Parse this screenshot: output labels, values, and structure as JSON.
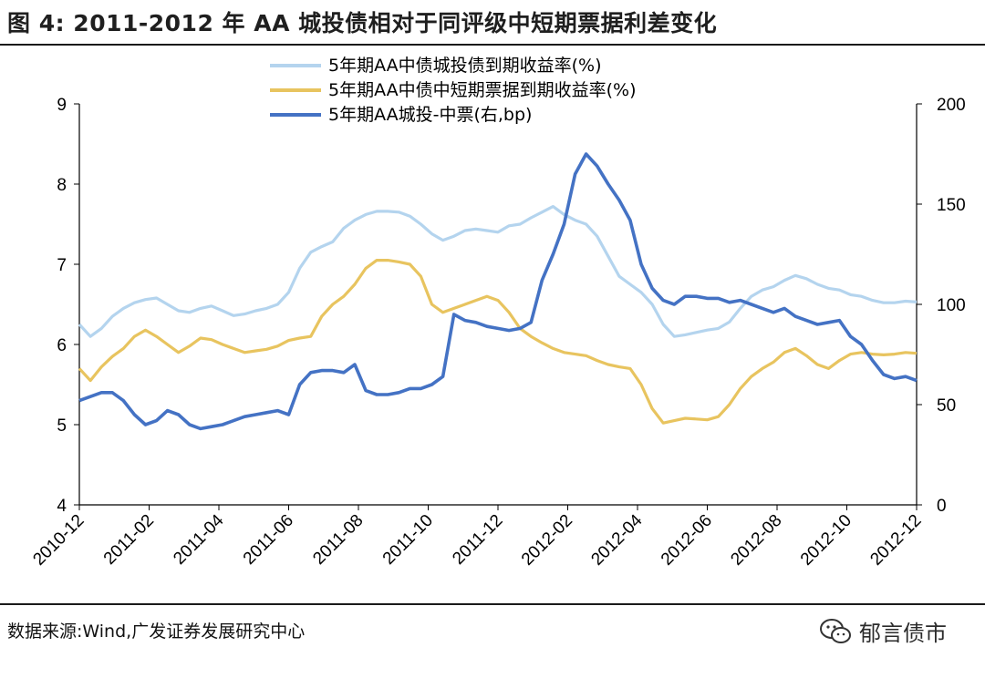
{
  "title": "图 4:  2011-2012 年 AA 城投债相对于同评级中短期票据利差变化",
  "source": "数据来源:Wind,广发证券发展研究中心",
  "watermark": "郁言债市",
  "chart_data": {
    "type": "line",
    "x_ticks": [
      "2010-12",
      "2011-02",
      "2011-04",
      "2011-06",
      "2011-08",
      "2011-10",
      "2011-12",
      "2012-02",
      "2012-04",
      "2012-06",
      "2012-08",
      "2012-10",
      "2012-12"
    ],
    "y_left": {
      "range": [
        4,
        9
      ],
      "ticks": [
        4,
        5,
        6,
        7,
        8,
        9
      ]
    },
    "y_right": {
      "range": [
        0,
        200
      ],
      "ticks": [
        0,
        50,
        100,
        150,
        200
      ]
    },
    "legend_position": "top-center",
    "series": [
      {
        "name": "5年期AA中债城投债到期收益率(%)",
        "axis": "left",
        "color": "#b4d4ee",
        "values": [
          6.25,
          6.1,
          6.2,
          6.35,
          6.45,
          6.52,
          6.56,
          6.58,
          6.5,
          6.42,
          6.4,
          6.45,
          6.48,
          6.42,
          6.36,
          6.38,
          6.42,
          6.45,
          6.5,
          6.65,
          6.95,
          7.15,
          7.22,
          7.28,
          7.45,
          7.55,
          7.62,
          7.66,
          7.66,
          7.65,
          7.6,
          7.5,
          7.38,
          7.3,
          7.35,
          7.42,
          7.44,
          7.42,
          7.4,
          7.48,
          7.5,
          7.58,
          7.65,
          7.72,
          7.62,
          7.55,
          7.5,
          7.35,
          7.1,
          6.85,
          6.75,
          6.65,
          6.5,
          6.25,
          6.1,
          6.12,
          6.15,
          6.18,
          6.2,
          6.28,
          6.45,
          6.6,
          6.68,
          6.72,
          6.8,
          6.86,
          6.82,
          6.75,
          6.7,
          6.68,
          6.62,
          6.6,
          6.55,
          6.52,
          6.52,
          6.54,
          6.53
        ]
      },
      {
        "name": "5年期AA中债中短期票据到期收益率(%)",
        "axis": "left",
        "color": "#e8c45f",
        "values": [
          5.7,
          5.55,
          5.72,
          5.85,
          5.95,
          6.1,
          6.18,
          6.1,
          6.0,
          5.9,
          5.98,
          6.08,
          6.06,
          6.0,
          5.95,
          5.9,
          5.92,
          5.94,
          5.98,
          6.05,
          6.08,
          6.1,
          6.35,
          6.5,
          6.6,
          6.75,
          6.95,
          7.05,
          7.05,
          7.03,
          7.0,
          6.85,
          6.5,
          6.4,
          6.45,
          6.5,
          6.55,
          6.6,
          6.55,
          6.4,
          6.2,
          6.1,
          6.02,
          5.95,
          5.9,
          5.88,
          5.86,
          5.8,
          5.75,
          5.72,
          5.7,
          5.5,
          5.2,
          5.02,
          5.05,
          5.08,
          5.07,
          5.06,
          5.1,
          5.25,
          5.45,
          5.6,
          5.7,
          5.78,
          5.9,
          5.95,
          5.86,
          5.75,
          5.7,
          5.8,
          5.88,
          5.9,
          5.88,
          5.87,
          5.88,
          5.9,
          5.89
        ]
      },
      {
        "name": "5年期AA城投-中票(右,bp)",
        "axis": "right",
        "color": "#4472c4",
        "values": [
          52,
          54,
          56,
          56,
          52,
          45,
          40,
          42,
          47,
          45,
          40,
          38,
          39,
          40,
          42,
          44,
          45,
          46,
          47,
          45,
          60,
          66,
          67,
          67,
          66,
          70,
          57,
          55,
          55,
          56,
          58,
          58,
          60,
          64,
          95,
          92,
          91,
          89,
          88,
          87,
          88,
          91,
          112,
          125,
          140,
          165,
          175,
          169,
          160,
          152,
          142,
          120,
          108,
          102,
          100,
          104,
          104,
          103,
          103,
          101,
          102,
          100,
          98,
          96,
          98,
          94,
          92,
          90,
          91,
          92,
          84,
          80,
          72,
          65,
          63,
          64,
          62
        ]
      }
    ]
  }
}
